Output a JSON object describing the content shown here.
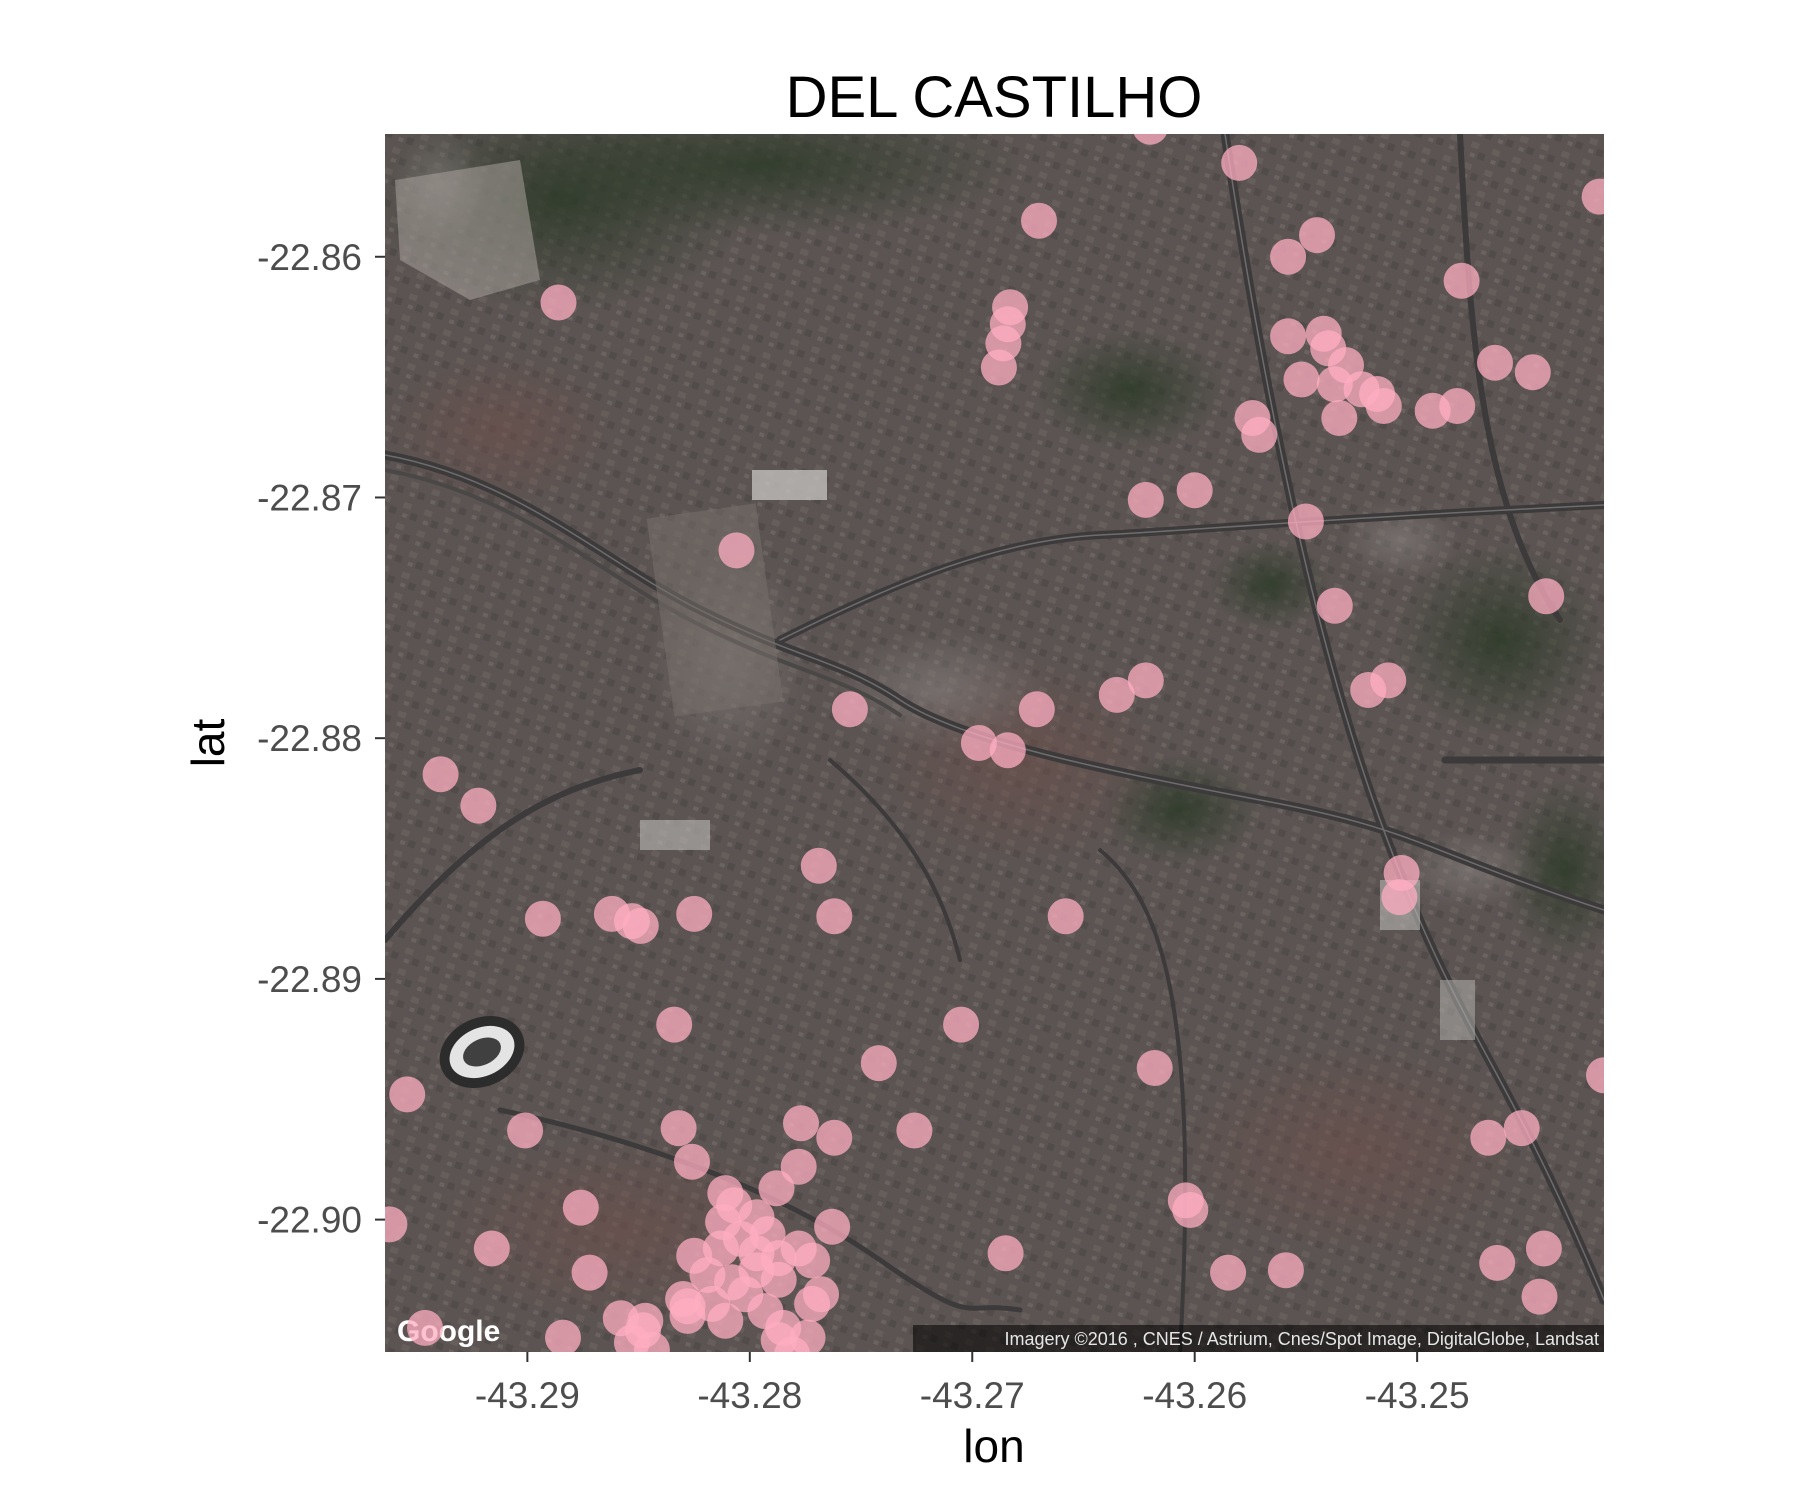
{
  "chart_data": {
    "type": "scatter",
    "title": "DEL CASTILHO",
    "xlabel": "lon",
    "ylabel": "lat",
    "xlim": [
      -43.2964,
      -43.2416
    ],
    "ylim": [
      -22.9055,
      -22.8549
    ],
    "x_ticks": [
      -43.29,
      -43.28,
      -43.27,
      -43.26,
      -43.25
    ],
    "x_tick_labels": [
      "-43.29",
      "-43.28",
      "-43.27",
      "-43.26",
      "-43.25"
    ],
    "y_ticks": [
      -22.86,
      -22.87,
      -22.88,
      -22.89,
      -22.9
    ],
    "y_tick_labels": [
      "-22.86",
      "-22.87",
      "-22.88",
      "-22.89",
      "-22.90"
    ],
    "grid": false,
    "legend": "none",
    "basemap": "satellite",
    "point_color": "#ffadc1",
    "point_alpha": 0.75,
    "basemap_branding": "Google",
    "attribution": "Imagery ©2016 , CNES / Astrium, Cnes/Spot Image, DigitalGlobe, Landsat",
    "points": [
      [
        -43.262,
        -22.8546
      ],
      [
        -43.258,
        -22.8561
      ],
      [
        -43.267,
        -22.8585
      ],
      [
        -43.2418,
        -22.8575
      ],
      [
        -43.2545,
        -22.8591
      ],
      [
        -43.2558,
        -22.86
      ],
      [
        -43.248,
        -22.861
      ],
      [
        -43.2886,
        -22.8619
      ],
      [
        -43.2683,
        -22.8621
      ],
      [
        -43.2684,
        -22.8628
      ],
      [
        -43.2686,
        -22.8636
      ],
      [
        -43.2688,
        -22.8646
      ],
      [
        -43.2558,
        -22.8633
      ],
      [
        -43.2542,
        -22.8632
      ],
      [
        -43.254,
        -22.8638
      ],
      [
        -43.2532,
        -22.8645
      ],
      [
        -43.2552,
        -22.8651
      ],
      [
        -43.2537,
        -22.8653
      ],
      [
        -43.2525,
        -22.8655
      ],
      [
        -43.2518,
        -22.8657
      ],
      [
        -43.2515,
        -22.8662
      ],
      [
        -43.2535,
        -22.8667
      ],
      [
        -43.2465,
        -22.8644
      ],
      [
        -43.2448,
        -22.8648
      ],
      [
        -43.2482,
        -22.8662
      ],
      [
        -43.2493,
        -22.8664
      ],
      [
        -43.2574,
        -22.8667
      ],
      [
        -43.2571,
        -22.8674
      ],
      [
        -43.2622,
        -22.8701
      ],
      [
        -43.26,
        -22.8697
      ],
      [
        -43.255,
        -22.871
      ],
      [
        -43.2806,
        -22.8722
      ],
      [
        -43.2537,
        -22.8745
      ],
      [
        -43.2442,
        -22.8741
      ],
      [
        -43.2513,
        -22.8776
      ],
      [
        -43.2522,
        -22.878
      ],
      [
        -43.2635,
        -22.8782
      ],
      [
        -43.2622,
        -22.8776
      ],
      [
        -43.2671,
        -22.8788
      ],
      [
        -43.2755,
        -22.8788
      ],
      [
        -43.2697,
        -22.8802
      ],
      [
        -43.2684,
        -22.8805
      ],
      [
        -43.2939,
        -22.8815
      ],
      [
        -43.2922,
        -22.8828
      ],
      [
        -43.2769,
        -22.8853
      ],
      [
        -43.2507,
        -22.8856
      ],
      [
        -43.2508,
        -22.8866
      ],
      [
        -43.2893,
        -22.8875
      ],
      [
        -43.2862,
        -22.8873
      ],
      [
        -43.2853,
        -22.8876
      ],
      [
        -43.2849,
        -22.8878
      ],
      [
        -43.2825,
        -22.8873
      ],
      [
        -43.2762,
        -22.8874
      ],
      [
        -43.2658,
        -22.8874
      ],
      [
        -43.2834,
        -22.8919
      ],
      [
        -43.2742,
        -22.8935
      ],
      [
        -43.2705,
        -22.8919
      ],
      [
        -43.2954,
        -22.8948
      ],
      [
        -43.2901,
        -22.8963
      ],
      [
        -43.2832,
        -22.8962
      ],
      [
        -43.2777,
        -22.896
      ],
      [
        -43.2762,
        -22.8966
      ],
      [
        -43.2726,
        -22.8963
      ],
      [
        -43.2826,
        -22.8976
      ],
      [
        -43.2778,
        -22.8978
      ],
      [
        -43.2811,
        -22.8989
      ],
      [
        -43.2788,
        -22.8987
      ],
      [
        -43.2618,
        -22.8937
      ],
      [
        -43.2604,
        -22.8992
      ],
      [
        -43.2602,
        -22.8996
      ],
      [
        -43.2876,
        -22.8995
      ],
      [
        -43.2962,
        -22.9002
      ],
      [
        -43.2916,
        -22.9012
      ],
      [
        -43.2872,
        -22.9022
      ],
      [
        -43.2825,
        -22.9015
      ],
      [
        -43.2813,
        -22.9012
      ],
      [
        -43.2804,
        -22.9008
      ],
      [
        -43.2797,
        -22.9014
      ],
      [
        -43.2787,
        -22.9016
      ],
      [
        -43.2778,
        -22.9012
      ],
      [
        -43.2763,
        -22.9003
      ],
      [
        -43.2812,
        -22.9001
      ],
      [
        -43.2807,
        -22.8994
      ],
      [
        -43.2797,
        -22.8999
      ],
      [
        -43.2792,
        -22.9006
      ],
      [
        -43.2819,
        -22.9023
      ],
      [
        -43.2808,
        -22.9026
      ],
      [
        -43.2797,
        -22.9021
      ],
      [
        -43.2787,
        -22.9025
      ],
      [
        -43.2772,
        -22.9017
      ],
      [
        -43.2802,
        -22.9031
      ],
      [
        -43.2817,
        -22.9035
      ],
      [
        -43.283,
        -22.9033
      ],
      [
        -43.2828,
        -22.9036
      ],
      [
        -43.2793,
        -22.9038
      ],
      [
        -43.2772,
        -22.9035
      ],
      [
        -43.2768,
        -22.9031
      ],
      [
        -43.2785,
        -22.9045
      ],
      [
        -43.2811,
        -22.9042
      ],
      [
        -43.2787,
        -22.905
      ],
      [
        -43.2774,
        -22.9049
      ],
      [
        -43.2781,
        -22.9056
      ],
      [
        -43.2858,
        -22.9041
      ],
      [
        -43.2847,
        -22.9042
      ],
      [
        -43.2848,
        -22.9046
      ],
      [
        -43.2853,
        -22.9051
      ],
      [
        -43.2844,
        -22.9054
      ],
      [
        -43.2946,
        -22.9045
      ],
      [
        -43.2884,
        -22.9049
      ],
      [
        -43.2828,
        -22.904
      ],
      [
        -43.2685,
        -22.9014
      ],
      [
        -43.2585,
        -22.9022
      ],
      [
        -43.2559,
        -22.9021
      ],
      [
        -43.2443,
        -22.9012
      ],
      [
        -43.2464,
        -22.9018
      ],
      [
        -43.2445,
        -22.9032
      ],
      [
        -43.2468,
        -22.8966
      ],
      [
        -43.2453,
        -22.8962
      ],
      [
        -43.2416,
        -22.894
      ]
    ]
  }
}
